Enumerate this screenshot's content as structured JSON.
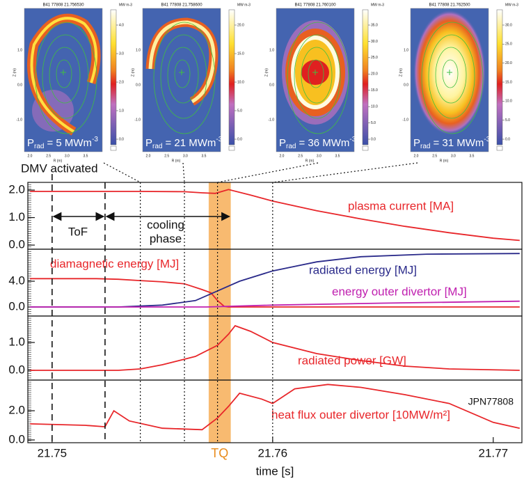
{
  "images": [
    {
      "title": "B41 77808 21.756530",
      "colorbar_label": "MW m-3",
      "xlabel": "R (m)",
      "ylabel": "Z (m)",
      "xticks": [
        {
          "value": 2,
          "label": "2.0"
        },
        {
          "value": 2.5,
          "label": "2.5"
        },
        {
          "value": 3,
          "label": "3.0"
        },
        {
          "value": 3.5,
          "label": "3.5"
        }
      ],
      "yticks": [
        {
          "value": 1,
          "label": "1.0"
        },
        {
          "value": 0,
          "label": "0.0"
        },
        {
          "value": -1,
          "label": "-1.0"
        }
      ],
      "colorbar_ticks": [
        {
          "value": 4,
          "label": "4.0"
        },
        {
          "value": 3,
          "label": "3.0"
        },
        {
          "value": 2,
          "label": "2.0"
        },
        {
          "value": 1,
          "label": "1.0"
        },
        {
          "value": 0,
          "label": "0.0"
        }
      ],
      "label": {
        "symbol": "P",
        "subscript": "rad",
        "text": "= 5 MWm",
        "exponent": "-3"
      }
    },
    {
      "title": "B41 77808 21.758600",
      "colorbar_label": "MW m-3",
      "xlabel": "R (m)",
      "ylabel": "Z (m)",
      "xticks": [
        {
          "value": 2,
          "label": "2.0"
        },
        {
          "value": 2.5,
          "label": "2.5"
        },
        {
          "value": 3,
          "label": "3.0"
        },
        {
          "value": 3.5,
          "label": "3.5"
        }
      ],
      "yticks": [
        {
          "value": 1,
          "label": "1.0"
        },
        {
          "value": 0,
          "label": "0.0"
        },
        {
          "value": -1,
          "label": "-1.0"
        }
      ],
      "colorbar_ticks": [
        {
          "value": 20,
          "label": "20.0"
        },
        {
          "value": 15,
          "label": "15.0"
        },
        {
          "value": 10,
          "label": "10.0"
        },
        {
          "value": 5,
          "label": "5.0"
        },
        {
          "value": 0,
          "label": "0.0"
        }
      ],
      "label": {
        "symbol": "P",
        "subscript": "rad",
        "text": "= 21 MWm",
        "exponent": "-3"
      }
    },
    {
      "title": "B41 77808 21.760100",
      "colorbar_label": "MW m-3",
      "xlabel": "R (m)",
      "ylabel": "Z (m)",
      "xticks": [
        {
          "value": 2,
          "label": "2.0"
        },
        {
          "value": 2.5,
          "label": "2.5"
        },
        {
          "value": 3,
          "label": "3.0"
        },
        {
          "value": 3.5,
          "label": "3.5"
        }
      ],
      "yticks": [
        {
          "value": 1,
          "label": "1.0"
        },
        {
          "value": 0,
          "label": "0.0"
        },
        {
          "value": -1,
          "label": "-1.0"
        }
      ],
      "colorbar_ticks": [
        {
          "value": 35,
          "label": "35.0"
        },
        {
          "value": 30,
          "label": "30.0"
        },
        {
          "value": 25,
          "label": "25.0"
        },
        {
          "value": 20,
          "label": "20.0"
        },
        {
          "value": 15,
          "label": "15.0"
        },
        {
          "value": 10,
          "label": "10.0"
        },
        {
          "value": 5,
          "label": "5.0"
        },
        {
          "value": 0,
          "label": "0.0"
        }
      ],
      "label": {
        "symbol": "P",
        "subscript": "rad",
        "text": "= 36 MWm",
        "exponent": "-3"
      }
    },
    {
      "title": "B41 77808 21.762500",
      "colorbar_label": "MW m-3",
      "xlabel": "R (m)",
      "ylabel": "Z (m)",
      "xticks": [
        {
          "value": 2,
          "label": "2.0"
        },
        {
          "value": 2.5,
          "label": "2.5"
        },
        {
          "value": 3,
          "label": "3.0"
        },
        {
          "value": 3.5,
          "label": "3.5"
        }
      ],
      "yticks": [
        {
          "value": 1,
          "label": "1.0"
        },
        {
          "value": 0,
          "label": "0.0"
        },
        {
          "value": -1,
          "label": "-1.0"
        }
      ],
      "colorbar_ticks": [
        {
          "value": 30,
          "label": "30.0"
        },
        {
          "value": 25,
          "label": "25.0"
        },
        {
          "value": 20,
          "label": "20.0"
        },
        {
          "value": 15,
          "label": "15.0"
        },
        {
          "value": 10,
          "label": "10.0"
        },
        {
          "value": 5,
          "label": "5.0"
        },
        {
          "value": 0,
          "label": "0.0"
        }
      ],
      "label": {
        "symbol": "P",
        "subscript": "rad",
        "text": "= 31 MWm",
        "exponent": "-3"
      }
    }
  ],
  "annotations": {
    "dmv": "DMV activated",
    "tof": "ToF",
    "cooling": [
      "cooling",
      "phase"
    ],
    "tq": "TQ",
    "shot": "JPN77808"
  },
  "markers": {
    "dashed": [
      21.75,
      21.7524
    ],
    "dotted": [
      21.754,
      21.756,
      21.7575,
      21.76
    ],
    "tq_band": [
      21.7571,
      21.7581
    ]
  },
  "chart_data": [
    {
      "type": "line",
      "xlim": [
        21.7489,
        21.7713
      ],
      "ylim": [
        -0.15,
        2.28
      ],
      "yticks": [
        {
          "value": 0,
          "label": "0.0"
        },
        {
          "value": 1,
          "label": "1.0"
        },
        {
          "value": 2,
          "label": "2.0"
        }
      ],
      "series": [
        {
          "name": "plasma current [MA]",
          "color": "#e8262a",
          "x": [
            21.749,
            21.75,
            21.752,
            21.754,
            21.756,
            21.7568,
            21.7574,
            21.758,
            21.759,
            21.76,
            21.762,
            21.764,
            21.766,
            21.768,
            21.77,
            21.7712
          ],
          "values": [
            1.95,
            1.95,
            1.95,
            1.95,
            1.94,
            1.9,
            1.88,
            2.02,
            1.82,
            1.6,
            1.25,
            0.95,
            0.68,
            0.45,
            0.25,
            0.17
          ]
        }
      ]
    },
    {
      "type": "line",
      "xlim": [
        21.7489,
        21.7713
      ],
      "ylim": [
        -1.4,
        8.97
      ],
      "yticks": [
        {
          "value": 0,
          "label": "0.0"
        },
        {
          "value": 4,
          "label": "4.0"
        }
      ],
      "series": [
        {
          "name": "diamagnetic energy [MJ]",
          "color": "#e8262a",
          "x": [
            21.749,
            21.752,
            21.753,
            21.754,
            21.755,
            21.756,
            21.7568,
            21.7572,
            21.7575,
            21.7578,
            21.758,
            21.76,
            21.765,
            21.7712
          ],
          "values": [
            4.4,
            4.4,
            4.3,
            4.1,
            3.9,
            3.6,
            2.7,
            2.2,
            1.0,
            0.1,
            0.0,
            0.0,
            0.0,
            0.0
          ]
        },
        {
          "name": "radiated energy [MJ]",
          "color": "#2a2a8a",
          "x": [
            21.749,
            21.753,
            21.755,
            21.7565,
            21.7575,
            21.7585,
            21.76,
            21.762,
            21.764,
            21.767,
            21.7712
          ],
          "values": [
            0.0,
            0.0,
            0.3,
            1.0,
            2.5,
            4.0,
            5.6,
            7.0,
            7.8,
            8.2,
            8.3
          ]
        },
        {
          "name": "energy outer divertor [MJ]",
          "color": "#c020b0",
          "x": [
            21.749,
            21.757,
            21.76,
            21.765,
            21.7712
          ],
          "values": [
            0.0,
            0.0,
            0.3,
            0.6,
            0.9
          ]
        }
      ]
    },
    {
      "type": "line",
      "xlim": [
        21.7489,
        21.7713
      ],
      "ylim": [
        -0.35,
        1.95
      ],
      "yticks": [
        {
          "value": 0,
          "label": "0.0"
        },
        {
          "value": 1,
          "label": "1.0"
        }
      ],
      "series": [
        {
          "name": "radiated power [GW]",
          "color": "#e8262a",
          "x": [
            21.749,
            21.753,
            21.754,
            21.755,
            21.7565,
            21.7575,
            21.758,
            21.7583,
            21.759,
            21.76,
            21.762,
            21.764,
            21.766,
            21.768,
            21.7712
          ],
          "values": [
            0.0,
            0.0,
            0.05,
            0.2,
            0.5,
            0.9,
            1.3,
            1.6,
            1.4,
            1.0,
            0.6,
            0.35,
            0.15,
            0.05,
            0.0
          ]
        }
      ]
    },
    {
      "type": "line",
      "xlim": [
        21.7489,
        21.7713
      ],
      "ylim": [
        -0.19,
        4.1
      ],
      "yticks": [
        {
          "value": 0,
          "label": "0.0"
        },
        {
          "value": 2,
          "label": "2.0"
        }
      ],
      "xticks": [
        21.75,
        21.76,
        21.77
      ],
      "xlabel": "time [s]",
      "series": [
        {
          "name": "heat flux outer divertor [10MW/m²]",
          "color": "#e8262a",
          "x": [
            21.749,
            21.7515,
            21.7524,
            21.7528,
            21.7535,
            21.755,
            21.7568,
            21.7575,
            21.758,
            21.7585,
            21.7595,
            21.76,
            21.761,
            21.7625,
            21.764,
            21.766,
            21.768,
            21.77,
            21.7712
          ],
          "values": [
            1.1,
            1.0,
            0.9,
            2.0,
            1.3,
            0.8,
            0.7,
            1.5,
            2.3,
            3.2,
            2.8,
            2.5,
            3.5,
            3.8,
            3.6,
            3.1,
            2.5,
            1.2,
            0.8
          ]
        }
      ]
    }
  ]
}
